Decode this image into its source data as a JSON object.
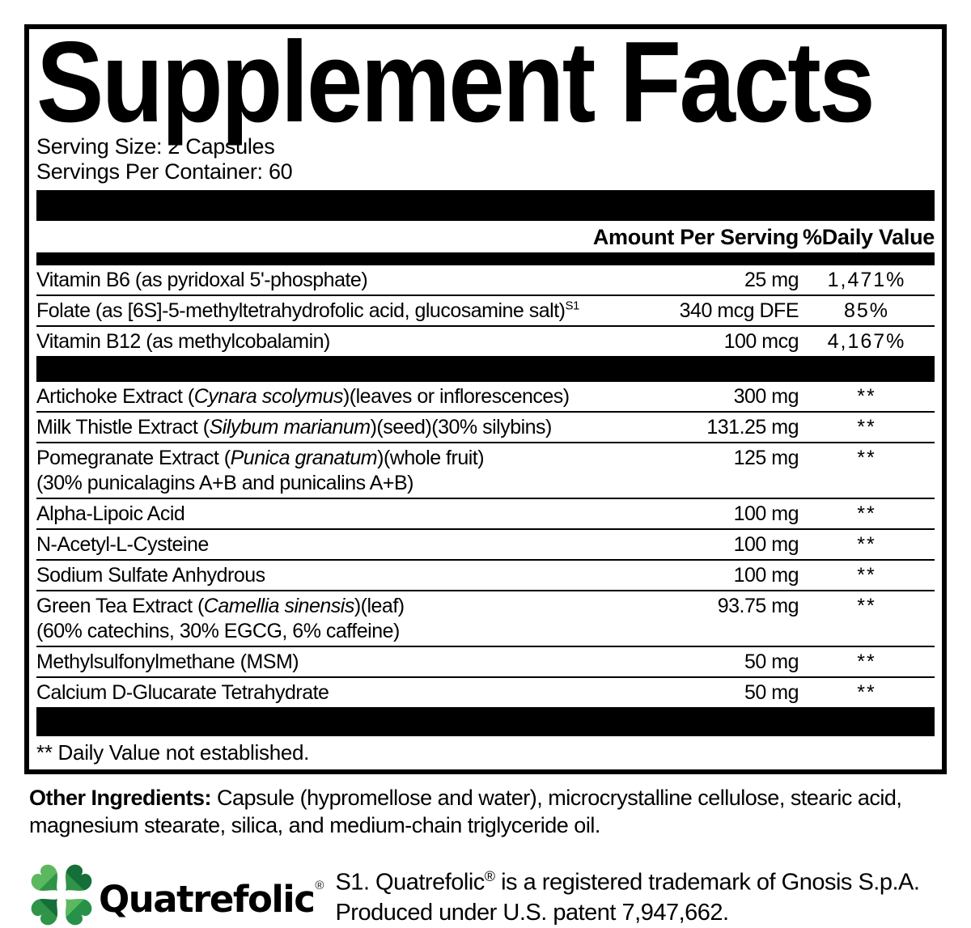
{
  "title": "Supplement Facts",
  "serving": {
    "size": "Serving Size: 2 Capsules",
    "per_container": "Servings Per Container: 60"
  },
  "table": {
    "col_amount": "Amount Per Serving",
    "col_dv": "%Daily Value",
    "sections": [
      {
        "rows": [
          {
            "lines": [
              [
                {
                  "text": "Vitamin B6 (as pyridoxal 5'-phosphate)"
                }
              ]
            ],
            "amount": "25 mg",
            "dv": "1,471%"
          },
          {
            "lines": [
              [
                {
                  "text": "Folate (as [6S]-5-methyltetrahydrofolic acid, glucosamine salt)"
                },
                {
                  "text": "S1",
                  "sup": true
                }
              ]
            ],
            "amount": "340 mcg DFE",
            "dv": "85%"
          },
          {
            "lines": [
              [
                {
                  "text": "Vitamin B12 (as methylcobalamin)"
                }
              ]
            ],
            "amount": "100 mcg",
            "dv": "4,167%"
          }
        ]
      },
      {
        "rows": [
          {
            "lines": [
              [
                {
                  "text": "Artichoke Extract ("
                },
                {
                  "text": "Cynara scolymus",
                  "italic": true
                },
                {
                  "text": ")(leaves or inflorescences)"
                }
              ]
            ],
            "amount": "300 mg",
            "dv": "**"
          },
          {
            "lines": [
              [
                {
                  "text": "Milk Thistle Extract ("
                },
                {
                  "text": "Silybum marianum",
                  "italic": true
                },
                {
                  "text": ")(seed)(30% silybins)"
                }
              ]
            ],
            "amount": "131.25 mg",
            "dv": "**"
          },
          {
            "lines": [
              [
                {
                  "text": "Pomegranate Extract ("
                },
                {
                  "text": "Punica granatum",
                  "italic": true
                },
                {
                  "text": ")(whole fruit)"
                }
              ],
              [
                {
                  "text": "(30% punicalagins A+B and punicalins A+B)"
                }
              ]
            ],
            "amount": "125 mg",
            "dv": "**"
          },
          {
            "lines": [
              [
                {
                  "text": "Alpha-Lipoic Acid"
                }
              ]
            ],
            "amount": "100 mg",
            "dv": "**"
          },
          {
            "lines": [
              [
                {
                  "text": "N-Acetyl-L-Cysteine"
                }
              ]
            ],
            "amount": "100 mg",
            "dv": "**"
          },
          {
            "lines": [
              [
                {
                  "text": "Sodium Sulfate Anhydrous"
                }
              ]
            ],
            "amount": "100 mg",
            "dv": "**"
          },
          {
            "lines": [
              [
                {
                  "text": "Green Tea Extract ("
                },
                {
                  "text": "Camellia sinensis",
                  "italic": true
                },
                {
                  "text": ")(leaf)"
                }
              ],
              [
                {
                  "text": "(60% catechins, 30% EGCG, 6% caffeine)"
                }
              ]
            ],
            "amount": "93.75 mg",
            "dv": "**"
          },
          {
            "lines": [
              [
                {
                  "text": "Methylsulfonylmethane (MSM)"
                }
              ]
            ],
            "amount": "50 mg",
            "dv": "**"
          },
          {
            "lines": [
              [
                {
                  "text": "Calcium D-Glucarate Tetrahydrate"
                }
              ]
            ],
            "amount": "50 mg",
            "dv": "**"
          }
        ]
      }
    ],
    "footnote": "** Daily Value not established."
  },
  "other_ingredients": {
    "label": "Other Ingredients:",
    "text": " Capsule (hypromellose and water), microcrystalline cellulose, stearic acid, magnesium stearate, silica, and medium-chain triglyceride oil."
  },
  "footer": {
    "wordmark": "Quatrefolic",
    "wordmark_reg": "®",
    "trademark_parts": [
      {
        "text": "S1. Quatrefolic"
      },
      {
        "text": "®",
        "sup": true
      },
      {
        "text": " is a registered trademark of Gnosis S.p.A."
      }
    ],
    "trademark_line2": "Produced under U.S. patent 7,947,662.",
    "colors": {
      "wordmark": "#b3905e",
      "leaf_light": "#5cb85e",
      "leaf_mid": "#2f9447",
      "leaf_dark": "#156f38"
    }
  }
}
